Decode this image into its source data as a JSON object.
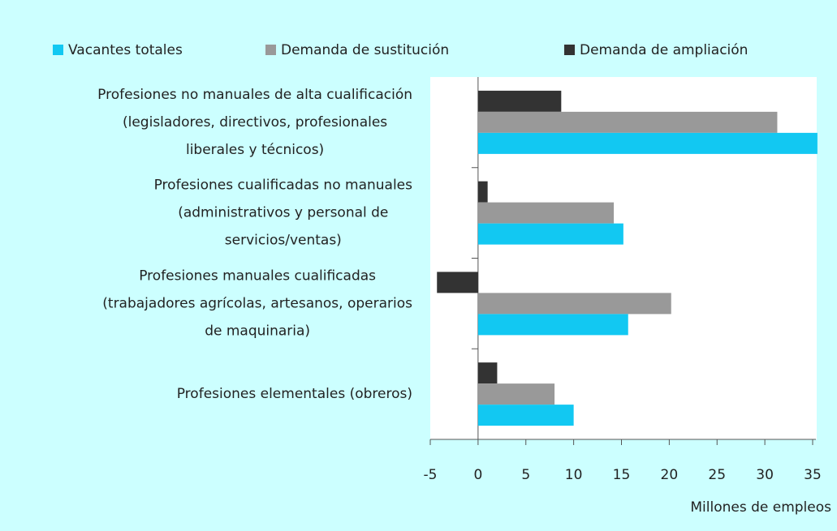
{
  "chart_data": {
    "type": "barh",
    "legend": "top",
    "categories": [
      [
        "Profesiones no manuales de alta cualificación",
        "(legisladores, directivos, profesionales",
        "liberales y técnicos)"
      ],
      [
        "Profesiones cualificadas no manuales",
        "(administrativos y personal de",
        "servicios/ventas)"
      ],
      [
        "Profesiones manuales cualificadas",
        "(trabajadores agrícolas, artesanos, operarios",
        "de maquinaria)"
      ],
      [
        "Profesiones elementales (obreros)"
      ]
    ],
    "series": [
      {
        "name": "Vacantes totales",
        "color": "#12c8f2",
        "values": [
          35.5,
          15.2,
          15.7,
          10
        ]
      },
      {
        "name": "Demanda de sustitución",
        "color": "#999999",
        "values": [
          31.3,
          14.2,
          20.2,
          8
        ]
      },
      {
        "name": "Demanda de ampliación",
        "color": "#333333",
        "values": [
          8.7,
          1,
          -4.3,
          2
        ]
      }
    ],
    "xlim": [
      -5,
      35
    ],
    "xticks": [
      -5,
      0,
      5,
      10,
      15,
      20,
      25,
      30,
      35
    ],
    "xlabel": "Millones de empleos"
  }
}
